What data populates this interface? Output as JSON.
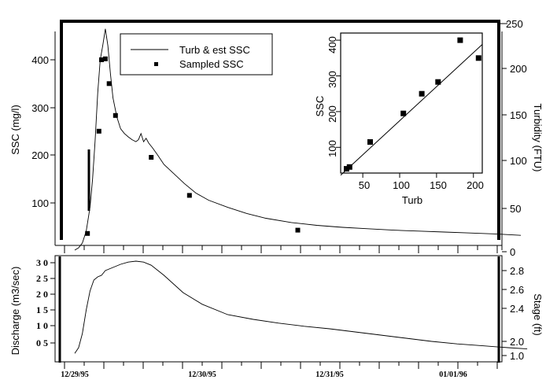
{
  "chart_data": [
    {
      "type": "line",
      "panel": "upper",
      "legend": [
        "Turb & est SSC",
        "Sampled SSC"
      ],
      "ylabel_left": "SSC (mg/l)",
      "ylabel_right": "Turbidity (FTU)",
      "yticks_left": [
        "100",
        "200",
        "300",
        "400"
      ],
      "yticks_right": [
        "0",
        "50",
        "100",
        "150",
        "200",
        "250"
      ],
      "ylim_left": [
        0,
        470
      ],
      "x_range_days": [
        0,
        3.6
      ],
      "series": [
        {
          "name": "Turb & est SSC",
          "x": [
            0,
            0.03,
            0.06,
            0.09,
            0.12,
            0.14,
            0.16,
            0.18,
            0.2,
            0.22,
            0.24,
            0.26,
            0.28,
            0.3,
            0.33,
            0.36,
            0.39,
            0.42,
            0.45,
            0.48,
            0.5,
            0.52,
            0.54,
            0.56,
            0.58,
            0.61,
            0.65,
            0.7,
            0.78,
            0.86,
            0.95,
            1.05,
            1.2,
            1.35,
            1.5,
            1.7,
            1.9,
            2.1,
            2.3,
            2.5,
            2.7,
            2.9,
            3.1,
            3.3,
            3.5
          ],
          "y": [
            0,
            5,
            15,
            40,
            90,
            150,
            230,
            330,
            400,
            430,
            465,
            430,
            370,
            320,
            280,
            255,
            245,
            238,
            232,
            228,
            232,
            245,
            228,
            235,
            225,
            215,
            200,
            180,
            160,
            140,
            120,
            105,
            90,
            77,
            67,
            58,
            52,
            48,
            45,
            42,
            40,
            38,
            36,
            34,
            31
          ]
        },
        {
          "name": "Sampled SSC",
          "x": [
            0.1,
            0.19,
            0.21,
            0.24,
            0.27,
            0.32,
            0.6,
            0.9,
            1.75
          ],
          "y": [
            35,
            250,
            400,
            402,
            350,
            283,
            195,
            115,
            42
          ]
        }
      ]
    },
    {
      "type": "scatter",
      "panel": "inset",
      "xlabel": "Turb",
      "ylabel": "SSC",
      "xticks": [
        "50",
        "100",
        "150",
        "200"
      ],
      "yticks": [
        "100",
        "200",
        "300",
        "400"
      ],
      "xlim": [
        20,
        212
      ],
      "ylim": [
        28,
        420
      ],
      "fit_line": {
        "x": [
          20,
          212
        ],
        "y": [
          22,
          388
        ]
      },
      "series": [
        {
          "name": "",
          "x": [
            28,
            32,
            60,
            105,
            130,
            152,
            182,
            207
          ],
          "y": [
            40,
            45,
            115,
            195,
            250,
            283,
            400,
            350
          ]
        }
      ]
    },
    {
      "type": "line",
      "panel": "lower",
      "ylabel_left": "Discharge (m3/sec)",
      "ylabel_right": "Stage (ft)",
      "yticks_left": [
        "0 5",
        "1 0",
        "1 5",
        "2 0",
        "2 5",
        "3 0"
      ],
      "yticks_right": [
        "1.0",
        "2.0",
        "2.4",
        "2.6",
        "2.8"
      ],
      "ylim_left": [
        0,
        3.1
      ],
      "x_range_days": [
        0,
        3.6
      ],
      "date_labels": [
        "12/29/95",
        "12/30/95",
        "12/31/95",
        "01/01/96"
      ],
      "date_positions_days": [
        0,
        1,
        2,
        3
      ],
      "series": [
        {
          "name": "",
          "x": [
            0,
            0.03,
            0.06,
            0.09,
            0.12,
            0.15,
            0.18,
            0.21,
            0.24,
            0.3,
            0.36,
            0.42,
            0.48,
            0.54,
            0.6,
            0.7,
            0.85,
            1.0,
            1.2,
            1.4,
            1.6,
            1.8,
            2.0,
            2.2,
            2.4,
            2.6,
            2.8,
            3.0,
            3.2,
            3.4,
            3.55
          ],
          "y": [
            0.12,
            0.3,
            0.75,
            1.5,
            2.1,
            2.45,
            2.55,
            2.6,
            2.75,
            2.85,
            2.95,
            3.02,
            3.05,
            3.02,
            2.92,
            2.6,
            2.05,
            1.68,
            1.35,
            1.2,
            1.08,
            0.98,
            0.9,
            0.8,
            0.7,
            0.6,
            0.5,
            0.42,
            0.36,
            0.3,
            0.26
          ]
        }
      ]
    }
  ]
}
